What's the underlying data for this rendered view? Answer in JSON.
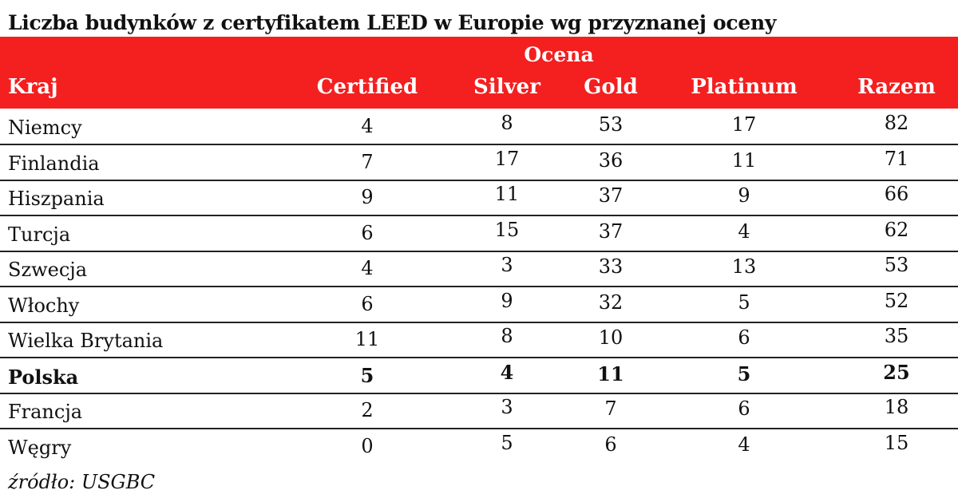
{
  "title": "Liczba budynków z certyfikatem LEED w Europie wg przyznanej oceny",
  "header": {
    "group_label": "Ocena",
    "columns": [
      "Kraj",
      "Certified",
      "Silver",
      "Gold",
      "Platinum",
      "Razem"
    ]
  },
  "rows": [
    {
      "country": "Niemcy",
      "values": [
        "4",
        "8",
        "53",
        "17",
        "82"
      ],
      "bold": false
    },
    {
      "country": "Finlandia",
      "values": [
        "7",
        "17",
        "36",
        "11",
        "71"
      ],
      "bold": false
    },
    {
      "country": "Hiszpania",
      "values": [
        "9",
        "11",
        "37",
        "9",
        "66"
      ],
      "bold": false
    },
    {
      "country": "Turcja",
      "values": [
        "6",
        "15",
        "37",
        "4",
        "62"
      ],
      "bold": false
    },
    {
      "country": "Szwecja",
      "values": [
        "4",
        "3",
        "33",
        "13",
        "53"
      ],
      "bold": false
    },
    {
      "country": "Włochy",
      "values": [
        "6",
        "9",
        "32",
        "5",
        "52"
      ],
      "bold": false
    },
    {
      "country": "Wielka Brytania",
      "values": [
        "11",
        "8",
        "10",
        "6",
        "35"
      ],
      "bold": false
    },
    {
      "country": "Polska",
      "values": [
        "5",
        "4",
        "11",
        "5",
        "25"
      ],
      "bold": true
    },
    {
      "country": "Francja",
      "values": [
        "2",
        "3",
        "7",
        "6",
        "18"
      ],
      "bold": false
    },
    {
      "country": "Węgry",
      "values": [
        "0",
        "5",
        "6",
        "4",
        "15"
      ],
      "bold": false
    }
  ],
  "source": "źródło: USGBC",
  "colors": {
    "header_background": "#f41f1f",
    "header_text": "#ffffff"
  }
}
